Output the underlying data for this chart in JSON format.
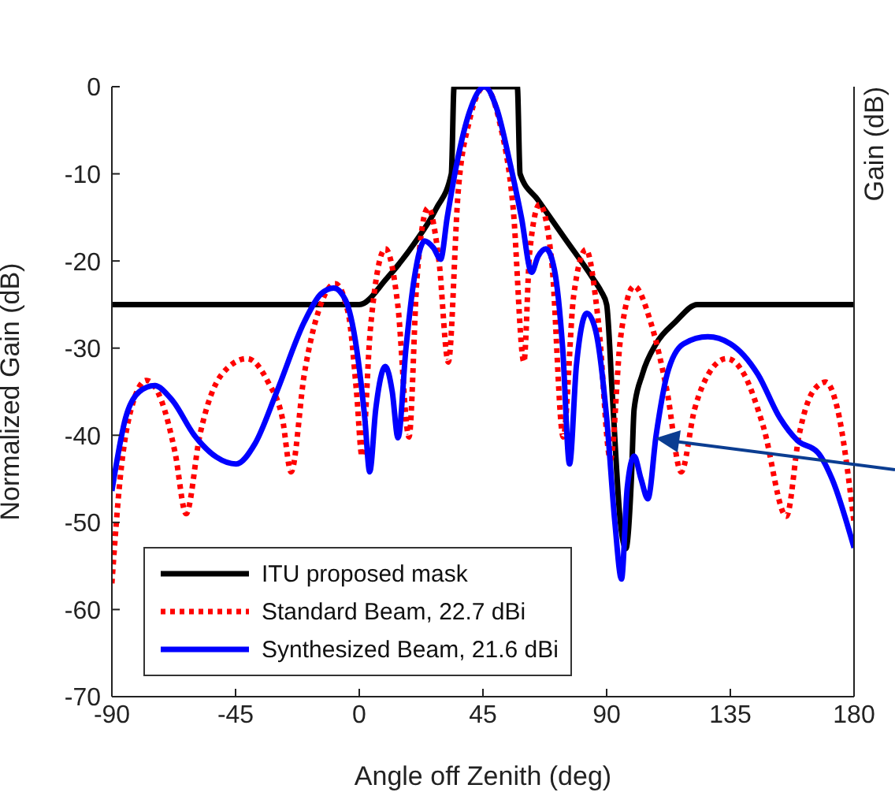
{
  "chart_data": {
    "type": "line",
    "xlabel": "Angle off Zenith (deg)",
    "ylabel": "Normalized Gain (dB)",
    "y2label": "Gain (dB)",
    "xlim": [
      -90,
      180
    ],
    "xticks": [
      -90,
      -45,
      0,
      45,
      90,
      135,
      180
    ],
    "ylim": [
      -70,
      0
    ],
    "yticks": [
      -70,
      -60,
      -50,
      -40,
      -30,
      -20,
      -10,
      0
    ],
    "legend": "bottom left",
    "marker": "none",
    "series": [
      {
        "name": "ITU proposed mask",
        "color": "#000000",
        "line_style": "solid",
        "x": [
          -90,
          0,
          10,
          20,
          28,
          33.5,
          34.5,
          57.5,
          58.5,
          65,
          75,
          85,
          88,
          90,
          92,
          95,
          97,
          99,
          100,
          103,
          108,
          115,
          123,
          180
        ],
        "values": [
          -25,
          -25,
          -22,
          -18,
          -14,
          -10,
          0,
          0,
          -10,
          -13,
          -17.5,
          -22,
          -23.5,
          -25,
          -35,
          -50,
          -53,
          -45,
          -37,
          -33,
          -29.5,
          -27,
          -25,
          -25
        ]
      },
      {
        "name": "Standard Beam, 22.7 dBi",
        "color": "#ff0000",
        "line_style": "dotted",
        "x": [
          -90,
          -87,
          -83,
          -77.4,
          -72,
          -67,
          -63,
          -58,
          -50,
          -40.8,
          -33,
          -28,
          -24.8,
          -20,
          -14,
          -8.8,
          -4,
          -1,
          1,
          4,
          9.5,
          14,
          18.1,
          21,
          25,
          29,
          32.4,
          36,
          40,
          45.6,
          51,
          56,
          59.9,
          62,
          65.6,
          70,
          74.2,
          78,
          82.5,
          87,
          91.4,
          95,
          100,
          106,
          112,
          117.1,
          122,
          127,
          133.7,
          140,
          147,
          155.4,
          160,
          165,
          169.7,
          174,
          180
        ],
        "values": [
          -57,
          -45,
          -37,
          -33.7,
          -36,
          -42,
          -49,
          -40,
          -33,
          -31.2,
          -34,
          -38,
          -44.2,
          -33,
          -25,
          -22.6,
          -26,
          -35,
          -42.4,
          -28,
          -18.6,
          -25,
          -40.2,
          -22,
          -13.9,
          -20,
          -31.6,
          -12,
          -4,
          0,
          -4,
          -14,
          -31.6,
          -19,
          -13.5,
          -20,
          -40.2,
          -24,
          -18.7,
          -27,
          -42.8,
          -29,
          -22.9,
          -27,
          -35,
          -44.2,
          -37,
          -33,
          -31.2,
          -33,
          -39,
          -49.3,
          -40,
          -35,
          -33.9,
          -37,
          -50
        ]
      },
      {
        "name": "Synthesized Beam, 21.6 dBi",
        "color": "#0000ff",
        "line_style": "solid",
        "x": [
          -90,
          -85,
          -80,
          -74.5,
          -68,
          -60,
          -52,
          -44.8,
          -38,
          -30,
          -20,
          -14,
          -9.3,
          -5,
          -1,
          2,
          3.8,
          6,
          9.5,
          12,
          14.1,
          17,
          20,
          23.8,
          27,
          29.6,
          32,
          36,
          40,
          45.6,
          50,
          55,
          59,
          62.7,
          65,
          67.9,
          71,
          74,
          76.5,
          79,
          82.8,
          86,
          90,
          93,
          95.4,
          97.5,
          100,
          102.5,
          105,
          108,
          112,
          118,
          126.8,
          135,
          145,
          153,
          159.4,
          166.9,
          172,
          180
        ],
        "values": [
          -46.4,
          -38,
          -35,
          -34.3,
          -36,
          -40,
          -42.5,
          -43.3,
          -41,
          -35,
          -27,
          -23.8,
          -23.1,
          -24.5,
          -30,
          -38,
          -44.2,
          -37,
          -32.1,
          -35,
          -40.3,
          -30,
          -22,
          -17.7,
          -18.5,
          -19.8,
          -15,
          -8,
          -3,
          0,
          -2.5,
          -9,
          -15,
          -21.3,
          -19.5,
          -18.6,
          -21,
          -30,
          -43.3,
          -32,
          -26,
          -28,
          -38,
          -50,
          -56.5,
          -46,
          -42.4,
          -45,
          -47.3,
          -40,
          -33,
          -29.5,
          -28.7,
          -29.5,
          -33,
          -38,
          -40.6,
          -42,
          -45,
          -52.9
        ]
      }
    ]
  }
}
